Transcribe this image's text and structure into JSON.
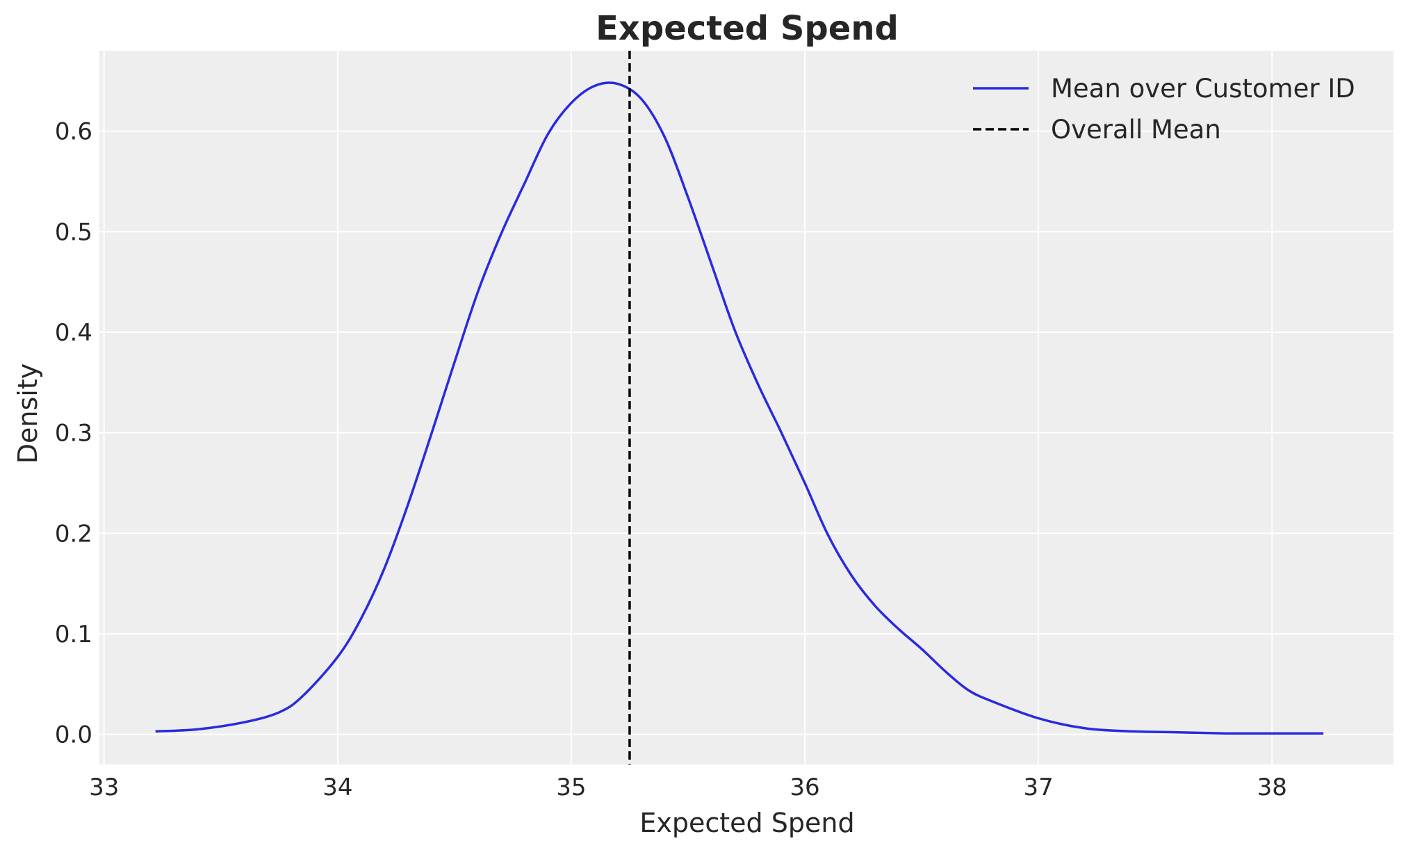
{
  "chart_data": {
    "type": "line",
    "title": "Expected Spend",
    "xlabel": "Expected Spend",
    "ylabel": "Density",
    "xlim": [
      32.98,
      38.52
    ],
    "ylim": [
      -0.03,
      0.68
    ],
    "xticks": [
      33,
      34,
      35,
      36,
      37,
      38
    ],
    "yticks": [
      0.0,
      0.1,
      0.2,
      0.3,
      0.4,
      0.5,
      0.6
    ],
    "grid": true,
    "legend_position": "top-right",
    "series": [
      {
        "name": "Mean over Customer ID",
        "color": "#2a2ae0",
        "x": [
          33.22,
          33.4,
          33.6,
          33.75,
          33.85,
          34.0,
          34.1,
          34.2,
          34.3,
          34.4,
          34.5,
          34.6,
          34.7,
          34.8,
          34.9,
          35.0,
          35.1,
          35.2,
          35.3,
          35.4,
          35.5,
          35.6,
          35.7,
          35.8,
          35.9,
          36.0,
          36.1,
          36.2,
          36.3,
          36.4,
          36.5,
          36.6,
          36.7,
          36.8,
          37.0,
          37.2,
          37.4,
          37.6,
          37.8,
          38.0,
          38.22
        ],
        "y": [
          0.003,
          0.005,
          0.012,
          0.022,
          0.038,
          0.077,
          0.115,
          0.165,
          0.228,
          0.298,
          0.37,
          0.44,
          0.498,
          0.548,
          0.597,
          0.628,
          0.645,
          0.647,
          0.632,
          0.594,
          0.534,
          0.468,
          0.402,
          0.348,
          0.3,
          0.25,
          0.198,
          0.158,
          0.128,
          0.105,
          0.085,
          0.063,
          0.044,
          0.033,
          0.016,
          0.006,
          0.003,
          0.002,
          0.001,
          0.001,
          0.001
        ]
      },
      {
        "name": "Overall Mean",
        "color": "#000000",
        "style": "dashed",
        "type": "vline",
        "x_value": 35.25
      }
    ]
  }
}
